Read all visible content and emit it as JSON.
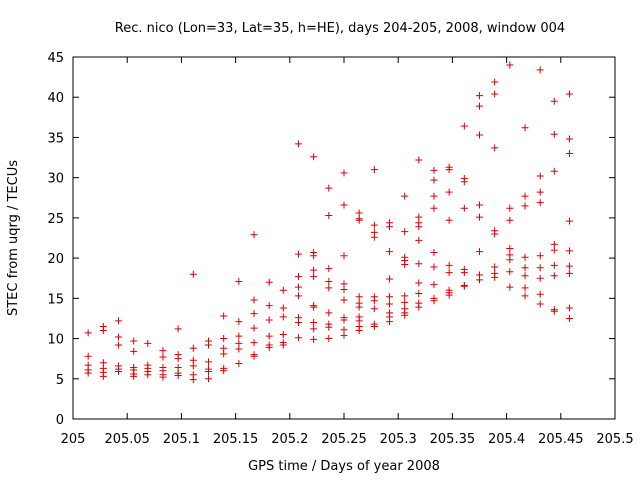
{
  "chart_data": {
    "type": "scatter",
    "title": "Rec. nico (Lon=33, Lat=35, h=HE), days 204-205, 2008, window 004",
    "xlabel": "GPS time / Days of year 2008",
    "ylabel": "STEC from uqrg / TECUs",
    "xlim": [
      205,
      205.5
    ],
    "ylim": [
      0,
      45
    ],
    "grid": false,
    "marker": "+",
    "marker_color": "#e00000",
    "xticks": [
      205,
      205.05,
      205.1,
      205.15,
      205.2,
      205.25,
      205.3,
      205.35,
      205.4,
      205.45,
      205.5
    ],
    "xtick_labels": [
      "205",
      "205.05",
      "205.1",
      "205.15",
      "205.2",
      "205.25",
      "205.3",
      "205.35",
      "205.4",
      "205.45",
      "205.5"
    ],
    "yticks": [
      0,
      5,
      10,
      15,
      20,
      25,
      30,
      35,
      40,
      45
    ],
    "ytick_labels": [
      "0",
      "5",
      "10",
      "15",
      "20",
      "25",
      "30",
      "35",
      "40",
      "45"
    ],
    "points": [
      [
        205.014,
        10.7
      ],
      [
        205.014,
        7.8
      ],
      [
        205.014,
        6.7
      ],
      [
        205.014,
        6.1
      ],
      [
        205.014,
        5.7
      ],
      [
        205.028,
        11.5
      ],
      [
        205.028,
        11.0
      ],
      [
        205.028,
        7.0
      ],
      [
        205.028,
        6.3
      ],
      [
        205.028,
        5.8
      ],
      [
        205.028,
        5.3
      ],
      [
        205.042,
        12.2
      ],
      [
        205.042,
        10.2
      ],
      [
        205.042,
        9.2
      ],
      [
        205.042,
        6.6
      ],
      [
        205.042,
        6.2
      ],
      [
        205.042,
        5.9
      ],
      [
        205.056,
        9.7
      ],
      [
        205.056,
        8.4
      ],
      [
        205.056,
        6.4
      ],
      [
        205.056,
        6.1
      ],
      [
        205.056,
        5.6
      ],
      [
        205.056,
        5.3
      ],
      [
        205.069,
        9.4
      ],
      [
        205.069,
        6.7
      ],
      [
        205.069,
        6.3
      ],
      [
        205.069,
        5.9
      ],
      [
        205.069,
        5.5
      ],
      [
        205.083,
        8.5
      ],
      [
        205.083,
        7.7
      ],
      [
        205.083,
        6.4
      ],
      [
        205.083,
        6.0
      ],
      [
        205.083,
        5.5
      ],
      [
        205.083,
        5.2
      ],
      [
        205.097,
        11.2
      ],
      [
        205.097,
        8.0
      ],
      [
        205.097,
        7.5
      ],
      [
        205.097,
        6.4
      ],
      [
        205.097,
        5.7
      ],
      [
        205.097,
        5.4
      ],
      [
        205.111,
        18.0
      ],
      [
        205.111,
        8.8
      ],
      [
        205.111,
        7.3
      ],
      [
        205.111,
        6.6
      ],
      [
        205.111,
        5.5
      ],
      [
        205.111,
        4.9
      ],
      [
        205.125,
        9.7
      ],
      [
        205.125,
        9.2
      ],
      [
        205.125,
        7.1
      ],
      [
        205.125,
        6.2
      ],
      [
        205.125,
        5.9
      ],
      [
        205.125,
        5.0
      ],
      [
        205.139,
        12.8
      ],
      [
        205.139,
        10.0
      ],
      [
        205.139,
        8.8
      ],
      [
        205.139,
        8.1
      ],
      [
        205.139,
        6.3
      ],
      [
        205.139,
        6.0
      ],
      [
        205.153,
        17.1
      ],
      [
        205.153,
        12.1
      ],
      [
        205.153,
        10.3
      ],
      [
        205.153,
        9.4
      ],
      [
        205.153,
        8.7
      ],
      [
        205.153,
        6.9
      ],
      [
        205.167,
        22.9
      ],
      [
        205.167,
        14.8
      ],
      [
        205.167,
        13.1
      ],
      [
        205.167,
        11.3
      ],
      [
        205.167,
        9.5
      ],
      [
        205.167,
        8.0
      ],
      [
        205.167,
        7.8
      ],
      [
        205.181,
        17.0
      ],
      [
        205.181,
        14.1
      ],
      [
        205.181,
        12.3
      ],
      [
        205.181,
        10.3
      ],
      [
        205.181,
        9.2
      ],
      [
        205.181,
        8.9
      ],
      [
        205.194,
        16.0
      ],
      [
        205.194,
        13.8
      ],
      [
        205.194,
        12.7
      ],
      [
        205.194,
        10.5
      ],
      [
        205.194,
        9.5
      ],
      [
        205.194,
        9.2
      ],
      [
        205.208,
        34.2
      ],
      [
        205.208,
        20.5
      ],
      [
        205.208,
        17.7
      ],
      [
        205.208,
        16.4
      ],
      [
        205.208,
        15.3
      ],
      [
        205.208,
        12.6
      ],
      [
        205.208,
        12.0
      ],
      [
        205.208,
        10.1
      ],
      [
        205.222,
        32.6
      ],
      [
        205.222,
        20.7
      ],
      [
        205.222,
        20.3
      ],
      [
        205.222,
        18.5
      ],
      [
        205.222,
        17.7
      ],
      [
        205.222,
        14.1
      ],
      [
        205.222,
        13.9
      ],
      [
        205.222,
        12.0
      ],
      [
        205.222,
        11.2
      ],
      [
        205.222,
        9.9
      ],
      [
        205.236,
        28.7
      ],
      [
        205.236,
        25.3
      ],
      [
        205.236,
        18.7
      ],
      [
        205.236,
        17.1
      ],
      [
        205.236,
        16.3
      ],
      [
        205.236,
        13.2
      ],
      [
        205.236,
        11.8
      ],
      [
        205.236,
        11.4
      ],
      [
        205.236,
        10.0
      ],
      [
        205.25,
        30.6
      ],
      [
        205.25,
        26.6
      ],
      [
        205.25,
        20.3
      ],
      [
        205.25,
        16.8
      ],
      [
        205.25,
        16.1
      ],
      [
        205.25,
        14.8
      ],
      [
        205.25,
        12.6
      ],
      [
        205.25,
        12.3
      ],
      [
        205.25,
        11.1
      ],
      [
        205.25,
        10.4
      ],
      [
        205.264,
        25.6
      ],
      [
        205.264,
        24.9
      ],
      [
        205.264,
        24.7
      ],
      [
        205.264,
        15.2
      ],
      [
        205.264,
        14.4
      ],
      [
        205.264,
        13.9
      ],
      [
        205.264,
        12.7
      ],
      [
        205.264,
        12.2
      ],
      [
        205.264,
        11.5
      ],
      [
        205.264,
        11.0
      ],
      [
        205.278,
        31.0
      ],
      [
        205.278,
        24.1
      ],
      [
        205.278,
        23.2
      ],
      [
        205.278,
        22.6
      ],
      [
        205.278,
        15.2
      ],
      [
        205.278,
        14.7
      ],
      [
        205.278,
        13.7
      ],
      [
        205.278,
        11.8
      ],
      [
        205.278,
        11.5
      ],
      [
        205.292,
        24.4
      ],
      [
        205.292,
        23.9
      ],
      [
        205.292,
        20.8
      ],
      [
        205.292,
        17.4
      ],
      [
        205.292,
        15.2
      ],
      [
        205.292,
        14.3
      ],
      [
        205.292,
        13.2
      ],
      [
        205.292,
        12.7
      ],
      [
        205.292,
        12.1
      ],
      [
        205.306,
        27.7
      ],
      [
        205.306,
        23.3
      ],
      [
        205.306,
        20.1
      ],
      [
        205.306,
        19.7
      ],
      [
        205.306,
        19.2
      ],
      [
        205.306,
        15.3
      ],
      [
        205.306,
        14.5
      ],
      [
        205.306,
        13.7
      ],
      [
        205.306,
        13.2
      ],
      [
        205.306,
        12.9
      ],
      [
        205.319,
        32.2
      ],
      [
        205.319,
        25.1
      ],
      [
        205.319,
        24.4
      ],
      [
        205.319,
        23.9
      ],
      [
        205.319,
        22.2
      ],
      [
        205.319,
        19.3
      ],
      [
        205.319,
        16.9
      ],
      [
        205.319,
        15.6
      ],
      [
        205.319,
        14.4
      ],
      [
        205.319,
        13.9
      ],
      [
        205.333,
        30.9
      ],
      [
        205.333,
        29.7
      ],
      [
        205.333,
        27.7
      ],
      [
        205.333,
        26.2
      ],
      [
        205.333,
        20.7
      ],
      [
        205.333,
        18.9
      ],
      [
        205.333,
        16.7
      ],
      [
        205.333,
        15.0
      ],
      [
        205.333,
        14.7
      ],
      [
        205.347,
        31.3
      ],
      [
        205.347,
        31.0
      ],
      [
        205.347,
        28.2
      ],
      [
        205.347,
        24.7
      ],
      [
        205.347,
        19.1
      ],
      [
        205.347,
        18.2
      ],
      [
        205.347,
        16.0
      ],
      [
        205.347,
        15.7
      ],
      [
        205.347,
        15.4
      ],
      [
        205.361,
        36.4
      ],
      [
        205.361,
        29.9
      ],
      [
        205.361,
        29.5
      ],
      [
        205.361,
        26.2
      ],
      [
        205.361,
        18.6
      ],
      [
        205.361,
        18.2
      ],
      [
        205.361,
        16.6
      ],
      [
        205.361,
        16.5
      ],
      [
        205.375,
        40.2
      ],
      [
        205.375,
        38.9
      ],
      [
        205.375,
        35.3
      ],
      [
        205.375,
        26.6
      ],
      [
        205.375,
        25.1
      ],
      [
        205.375,
        20.8
      ],
      [
        205.375,
        17.9
      ],
      [
        205.375,
        17.3
      ],
      [
        205.389,
        41.9
      ],
      [
        205.389,
        40.4
      ],
      [
        205.389,
        33.7
      ],
      [
        205.389,
        23.4
      ],
      [
        205.389,
        23.0
      ],
      [
        205.389,
        18.9
      ],
      [
        205.389,
        18.1
      ],
      [
        205.389,
        17.6
      ],
      [
        205.403,
        44.0
      ],
      [
        205.403,
        26.2
      ],
      [
        205.403,
        24.7
      ],
      [
        205.403,
        21.2
      ],
      [
        205.403,
        20.4
      ],
      [
        205.403,
        19.8
      ],
      [
        205.403,
        18.3
      ],
      [
        205.403,
        16.4
      ],
      [
        205.417,
        36.2
      ],
      [
        205.417,
        27.7
      ],
      [
        205.417,
        26.5
      ],
      [
        205.417,
        20.1
      ],
      [
        205.417,
        18.8
      ],
      [
        205.417,
        17.8
      ],
      [
        205.417,
        16.3
      ],
      [
        205.417,
        15.3
      ],
      [
        205.431,
        43.4
      ],
      [
        205.431,
        30.2
      ],
      [
        205.431,
        28.2
      ],
      [
        205.431,
        26.9
      ],
      [
        205.431,
        20.3
      ],
      [
        205.431,
        18.8
      ],
      [
        205.431,
        17.5
      ],
      [
        205.431,
        15.5
      ],
      [
        205.431,
        14.3
      ],
      [
        205.444,
        39.5
      ],
      [
        205.444,
        35.4
      ],
      [
        205.444,
        30.8
      ],
      [
        205.444,
        21.7
      ],
      [
        205.444,
        21.0
      ],
      [
        205.444,
        19.1
      ],
      [
        205.444,
        17.8
      ],
      [
        205.444,
        13.6
      ],
      [
        205.444,
        13.4
      ],
      [
        205.458,
        40.4
      ],
      [
        205.458,
        34.8
      ],
      [
        205.458,
        33.0
      ],
      [
        205.458,
        24.6
      ],
      [
        205.458,
        20.9
      ],
      [
        205.458,
        19.0
      ],
      [
        205.458,
        18.1
      ],
      [
        205.458,
        13.8
      ],
      [
        205.458,
        12.5
      ]
    ]
  }
}
